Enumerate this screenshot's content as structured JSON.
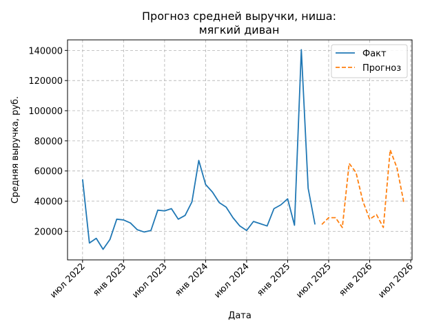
{
  "chart_data": {
    "type": "line",
    "title_line1": "Прогноз средней выручки, ниша:",
    "title_line2": "мягкий диван",
    "xlabel": "Дата",
    "ylabel": "Средняя выручка, руб.",
    "x_ticks": [
      {
        "label": "июл 2022",
        "t": 0
      },
      {
        "label": "янв 2023",
        "t": 6
      },
      {
        "label": "июл 2023",
        "t": 12
      },
      {
        "label": "янв 2024",
        "t": 18
      },
      {
        "label": "июл 2024",
        "t": 24
      },
      {
        "label": "янв 2025",
        "t": 30
      },
      {
        "label": "июл 2025",
        "t": 36
      },
      {
        "label": "янв 2026",
        "t": 42
      },
      {
        "label": "июл 2026",
        "t": 48
      }
    ],
    "y_ticks": [
      20000,
      40000,
      60000,
      80000,
      100000,
      120000,
      140000
    ],
    "x_range": [
      -2.2,
      48.2
    ],
    "y_range": [
      1000,
      147000
    ],
    "grid": true,
    "legend_position": "top-right",
    "series": [
      {
        "name": "Факт",
        "color": "#1f77b4",
        "dashed": false,
        "x_start": "июл 2022",
        "values": [
          54500,
          12200,
          15300,
          8000,
          14500,
          28000,
          27500,
          25500,
          21000,
          19500,
          20500,
          34000,
          33500,
          35000,
          28000,
          30500,
          39500,
          67000,
          51000,
          46000,
          39000,
          36000,
          29000,
          23500,
          20500,
          26500,
          25000,
          23500,
          35000,
          37500,
          41500,
          24000,
          140500,
          48500,
          24500
        ]
      },
      {
        "name": "Прогноз",
        "color": "#ff7f0e",
        "dashed": true,
        "x_start": "июн 2025",
        "values": [
          24500,
          29000,
          29000,
          22500,
          65000,
          59000,
          40000,
          28000,
          31000,
          22500,
          74000,
          62000,
          39000
        ]
      }
    ]
  }
}
